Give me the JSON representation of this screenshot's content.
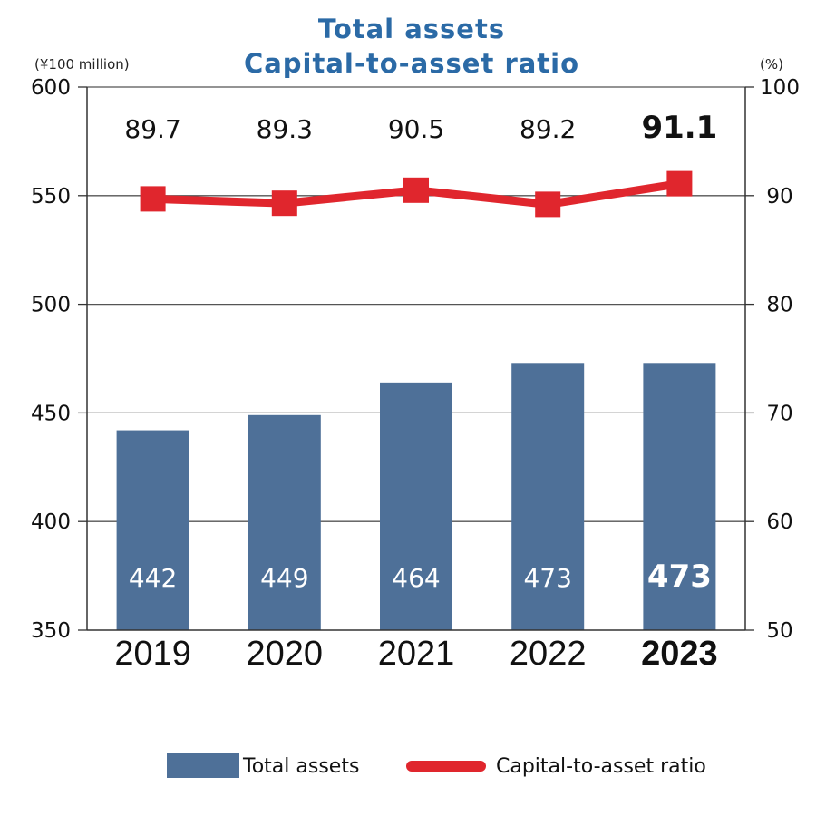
{
  "chart_data": {
    "type": "bar",
    "title": [
      "Total assets",
      "Capital-to-asset ratio"
    ],
    "left_axis_unit": "(¥100 million)",
    "right_axis_unit": "(%)",
    "categories": [
      "2019",
      "2020",
      "2021",
      "2022",
      "2023"
    ],
    "highlight_category": "2023",
    "left_ylim": [
      350,
      600
    ],
    "left_ticks": [
      350,
      400,
      450,
      500,
      550,
      600
    ],
    "right_ylim": [
      50,
      100
    ],
    "right_ticks": [
      50,
      60,
      70,
      80,
      90,
      100
    ],
    "grid": true,
    "legend_position": "bottom",
    "series": [
      {
        "name": "Total assets",
        "kind": "bar",
        "axis": "left",
        "color": "#4e7098",
        "values": [
          442,
          449,
          464,
          473,
          473
        ],
        "labels": [
          "442",
          "449",
          "464",
          "473",
          "473"
        ]
      },
      {
        "name": "Capital-to-asset ratio",
        "kind": "line",
        "axis": "right",
        "color": "#e0262d",
        "values": [
          89.7,
          89.3,
          90.5,
          89.2,
          91.1
        ],
        "labels": [
          "89.7",
          "89.3",
          "90.5",
          "89.2",
          "91.1"
        ]
      }
    ]
  }
}
